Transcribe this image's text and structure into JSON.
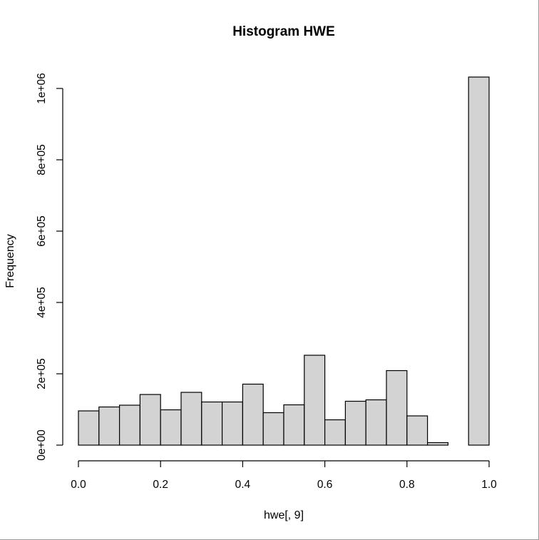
{
  "chart_data": {
    "type": "bar",
    "title": "Histogram HWE",
    "xlabel": "hwe[, 9]",
    "ylabel": "Frequency",
    "bin_edges": [
      0.0,
      0.05,
      0.1,
      0.15,
      0.2,
      0.25,
      0.3,
      0.35,
      0.4,
      0.45,
      0.5,
      0.55,
      0.6,
      0.65,
      0.7,
      0.75,
      0.8,
      0.85,
      0.9,
      0.95,
      1.0
    ],
    "values": [
      96000,
      107000,
      112000,
      142000,
      99000,
      148000,
      121000,
      121000,
      171000,
      91000,
      113000,
      252000,
      71000,
      123000,
      127000,
      209000,
      82000,
      7000,
      0,
      1032000
    ],
    "xlim": [
      0.0,
      1.0
    ],
    "ylim": [
      0,
      1000000
    ],
    "x_ticks": [
      {
        "value": 0.0,
        "label": "0.0"
      },
      {
        "value": 0.2,
        "label": "0.2"
      },
      {
        "value": 0.4,
        "label": "0.4"
      },
      {
        "value": 0.6,
        "label": "0.6"
      },
      {
        "value": 0.8,
        "label": "0.8"
      },
      {
        "value": 1.0,
        "label": "1.0"
      }
    ],
    "y_ticks": [
      {
        "value": 0,
        "label": "0e+00"
      },
      {
        "value": 200000,
        "label": "2e+05"
      },
      {
        "value": 400000,
        "label": "4e+05"
      },
      {
        "value": 600000,
        "label": "6e+05"
      },
      {
        "value": 800000,
        "label": "8e+05"
      },
      {
        "value": 1000000,
        "label": "1e+06"
      }
    ],
    "grid": false,
    "bar_color": "#d3d3d3",
    "edge_color": "#000000"
  }
}
